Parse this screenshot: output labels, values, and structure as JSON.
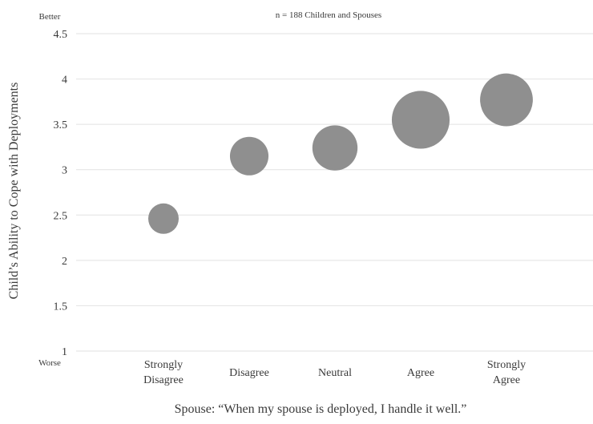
{
  "chart_data": {
    "type": "scatter",
    "subtitle": "n = 188 Children and Spouses",
    "xlabel": "Spouse: “When my spouse is deployed, I handle it well.”",
    "ylabel": "Child’s Ability to Cope with Deployments",
    "y_top_label": "Better",
    "y_bottom_label": "Worse",
    "ylim": [
      1,
      4.5
    ],
    "yticks": [
      "1",
      "1.5",
      "2",
      "2.5",
      "3",
      "3.5",
      "4",
      "4.5"
    ],
    "categories": [
      [
        "Strongly",
        "Disagree"
      ],
      [
        "Disagree"
      ],
      [
        "Neutral"
      ],
      [
        "Agree"
      ],
      [
        "Strongly",
        "Agree"
      ]
    ],
    "series": [
      {
        "values": [
          2.46,
          3.15,
          3.24,
          3.55,
          3.77
        ],
        "bubble_size": [
          1.0,
          1.6,
          2.2,
          3.6,
          3.0
        ]
      }
    ],
    "grid": true,
    "bubble_color": "#8f8f8f",
    "grid_color": "#e2e2e2"
  }
}
